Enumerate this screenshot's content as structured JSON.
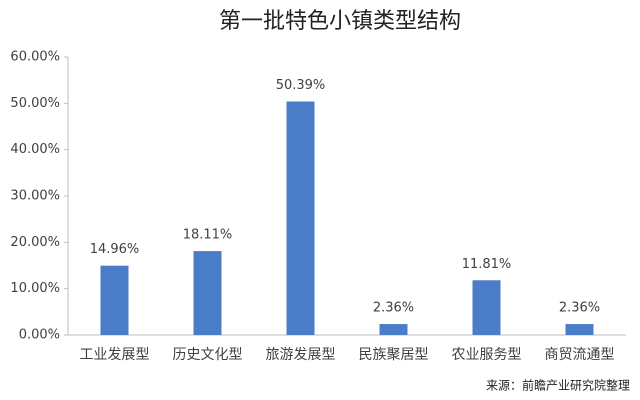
{
  "chart_data": {
    "type": "bar",
    "title": "第一批特色小镇类型结构",
    "categories": [
      "工业发展型",
      "历史文化型",
      "旅游发展型",
      "民族聚居型",
      "农业服务型",
      "商贸流通型"
    ],
    "values": [
      14.96,
      18.11,
      50.39,
      2.36,
      11.81,
      2.36
    ],
    "value_labels": [
      "14.96%",
      "18.11%",
      "50.39%",
      "2.36%",
      "11.81%",
      "2.36%"
    ],
    "color": "#4a7cc7",
    "ylim": [
      0,
      60
    ],
    "yticks": [
      {
        "value": 0,
        "label": "0.00%"
      },
      {
        "value": 10,
        "label": "10.00%"
      },
      {
        "value": 20,
        "label": "20.00%"
      },
      {
        "value": 30,
        "label": "30.00%"
      },
      {
        "value": 40,
        "label": "40.00%"
      },
      {
        "value": 50,
        "label": "50.00%"
      },
      {
        "value": 60,
        "label": "60.00%"
      }
    ],
    "grid": false,
    "source": "来源：前瞻产业研究院整理"
  }
}
